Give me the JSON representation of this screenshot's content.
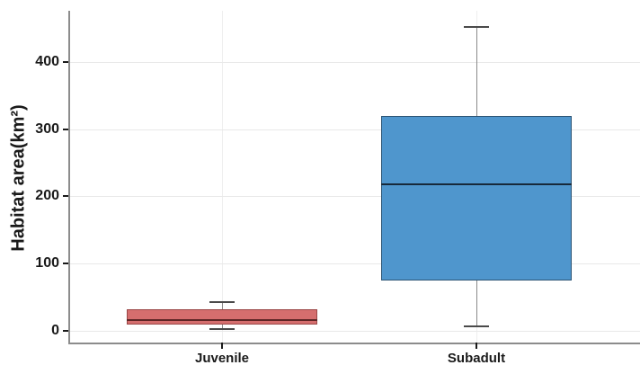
{
  "chart_data": {
    "type": "boxplot",
    "title": "",
    "xlabel": "",
    "ylabel": "Habitat area(km²)",
    "categories": [
      "Juvenile",
      "Subadult"
    ],
    "yticks": [
      "0",
      "100",
      "200",
      "300",
      "400"
    ],
    "ytick_values": [
      0,
      100,
      200,
      300,
      400
    ],
    "ylim": [
      -19,
      476
    ],
    "grid": "horizontal major gridlines + faint vertical gridline at each category center",
    "legend_position": "none",
    "series": [
      {
        "name": "Juvenile",
        "min": 2,
        "q1": 9,
        "median": 16,
        "q3": 32,
        "max": 42,
        "fill_color": "#D56E6E",
        "border_color": "#9A4646",
        "median_color": "#5F2626"
      },
      {
        "name": "Subadult",
        "min": 6,
        "q1": 74,
        "median": 218,
        "q3": 320,
        "max": 452,
        "fill_color": "#4F96CD",
        "border_color": "#2C5474",
        "median_color": "#17293A"
      }
    ],
    "colors": {
      "background": "#FFFFFF",
      "axis_line": "#8C8C8C",
      "tick_mark": "#1A1A1A",
      "text": "#1A1A1A",
      "gridline_h": "#E9E9E9",
      "gridline_v": "#EEEEEE",
      "whisker_line": "#8A8A8A",
      "whisker_cap": "#4A4A4A"
    }
  }
}
